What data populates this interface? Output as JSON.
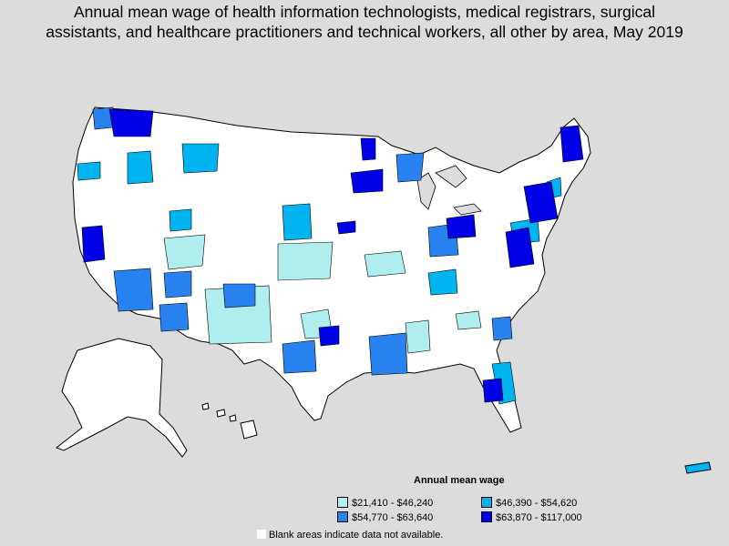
{
  "title": {
    "line1": "Annual mean wage of health information technologists, medical registrars, surgical",
    "line2": "assistants, and healthcare practitioners and technical workers, all other by area, May 2019"
  },
  "legend": {
    "title": "Annual mean wage",
    "items": [
      {
        "label": "$21,410 - $46,240",
        "color": "#b0eeee"
      },
      {
        "label": "$46,390 - $54,620",
        "color": "#00b4f0"
      },
      {
        "label": "$54,770 - $63,640",
        "color": "#2882f0"
      },
      {
        "label": "$63,870 - $117,000",
        "color": "#0000e6"
      }
    ]
  },
  "note": "Blank areas indicate data not available.",
  "colors": {
    "background": "#dcdcdc",
    "land": "#ffffff",
    "border": "#000000"
  }
}
